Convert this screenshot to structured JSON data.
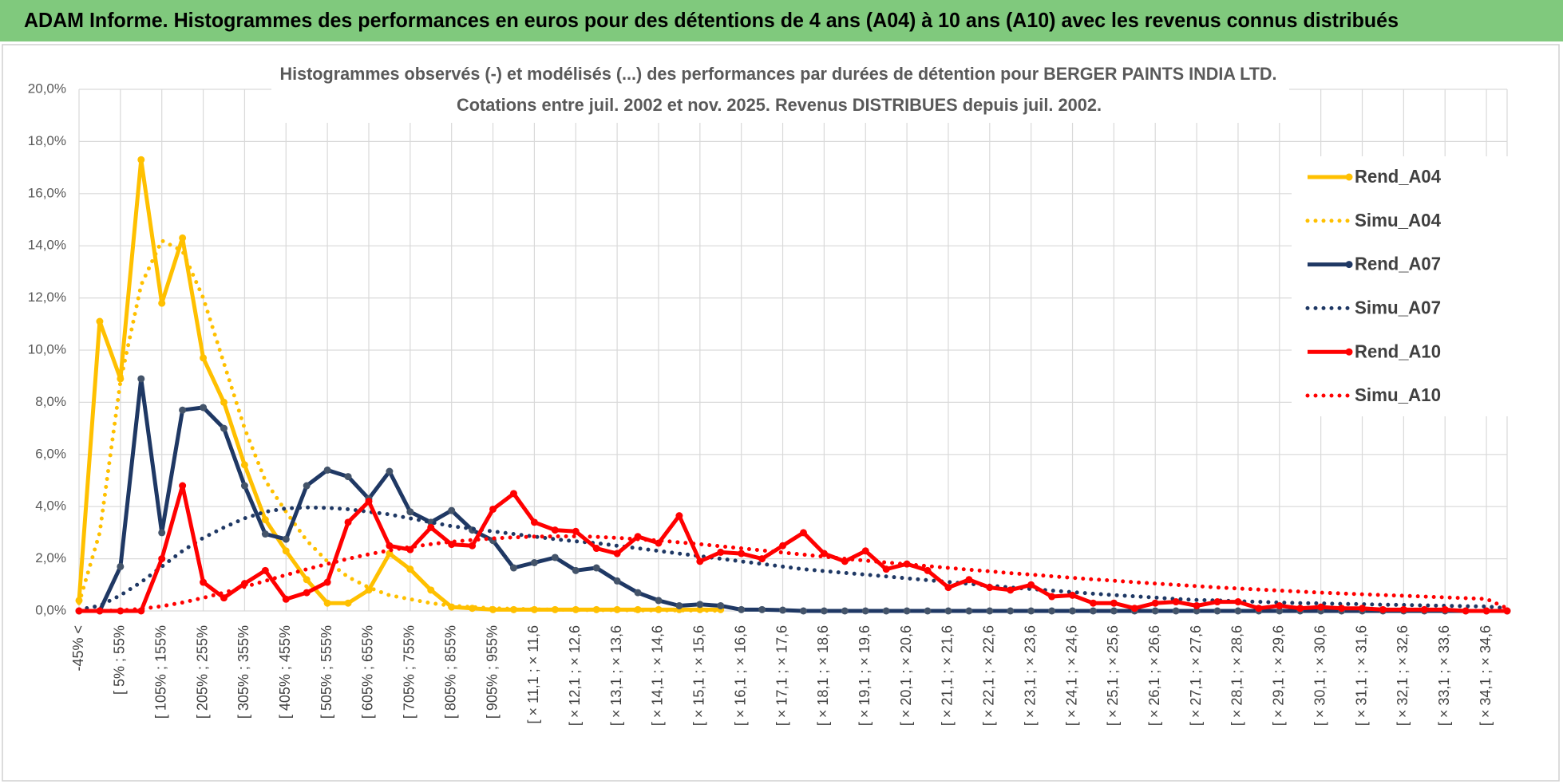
{
  "header": {
    "title": "ADAM Informe. Histogrammes des performances en euros pour des détentions de 4 ans (A04) à 10 ans (A10) avec les revenus connus distribués"
  },
  "chart_data": {
    "type": "line",
    "title": "Histogrammes observés (-) et modélisés (...) des performances par durées de détention pour BERGER PAINTS INDIA LTD.",
    "subtitle": "Cotations entre juil. 2002 et nov. 2025. Revenus DISTRIBUES depuis juil. 2002.",
    "categories": [
      "-45% <",
      null,
      "[ 5% ; 55%",
      null,
      "[ 105% ; 155%",
      null,
      "[ 205% ; 255%",
      null,
      "[ 305% ; 355%",
      null,
      "[ 405% ; 455%",
      null,
      "[ 505% ; 555%",
      null,
      "[ 605% ; 655%",
      null,
      "[ 705% ; 755%",
      null,
      "[ 805% ; 855%",
      null,
      "[ 905% ; 955%",
      null,
      "[ × 11,1 ; × 11,6",
      null,
      "[ × 12,1 ; × 12,6",
      null,
      "[ × 13,1 ; × 13,6",
      null,
      "[ × 14,1 ; × 14,6",
      null,
      "[ × 15,1 ; × 15,6",
      null,
      "[ × 16,1 ; × 16,6",
      null,
      "[ × 17,1 ; × 17,6",
      null,
      "[ × 18,1 ; × 18,6",
      null,
      "[ × 19,1 ; × 19,6",
      null,
      "[ × 20,1 ; × 20,6",
      null,
      "[ × 21,1 ; × 21,6",
      null,
      "[ × 22,1 ; × 22,6",
      null,
      "[ × 23,1 ; × 23,6",
      null,
      "[ × 24,1 ; × 24,6",
      null,
      "[ × 25,1 ; × 25,6",
      null,
      "[ × 26,1 ; × 26,6",
      null,
      "[ × 27,1 ; × 27,6",
      null,
      "[ × 28,1 ; × 28,6",
      null,
      "[ × 29,1 ; × 29,6",
      null,
      "[ × 30,1 ; × 30,6",
      null,
      "[ × 31,1 ; × 31,6",
      null,
      "[ × 32,1 ; × 32,6",
      null,
      "[ × 33,1 ; × 33,6",
      null,
      "[ × 34,1 ; × 34,6",
      null
    ],
    "series": [
      {
        "name": "Rend_A04",
        "color": "#ffc000",
        "dash": "solid",
        "values": [
          0.4,
          11.1,
          8.9,
          17.3,
          11.8,
          14.3,
          9.7,
          8.0,
          5.6,
          3.5,
          2.3,
          1.2,
          0.3,
          0.3,
          0.8,
          2.2,
          1.6,
          0.8,
          0.15,
          0.1,
          0.05,
          0.05,
          0.05,
          0.05,
          0.05,
          0.05,
          0.05,
          0.05,
          0.05,
          0.05,
          0.05,
          0.05,
          null,
          null,
          null,
          null,
          null,
          null,
          null,
          null,
          null,
          null,
          null,
          null,
          null,
          null,
          null,
          null,
          null,
          null,
          null,
          null,
          null,
          null,
          null,
          null,
          null,
          null,
          null,
          null,
          null,
          null,
          null,
          null,
          null,
          null,
          null,
          null,
          null,
          null
        ]
      },
      {
        "name": "Simu_A04",
        "color": "#ffc000",
        "dash": "dotted",
        "values": [
          0.3,
          3.0,
          8.8,
          12.5,
          14.2,
          13.8,
          12.0,
          9.5,
          7.0,
          5.0,
          3.8,
          2.7,
          1.9,
          1.3,
          0.9,
          0.6,
          0.45,
          0.3,
          0.2,
          0.15,
          0.1,
          0.08,
          0.06,
          0.05,
          0.04,
          0.03,
          0.03,
          0.02,
          0.02,
          0.02,
          0.01,
          0.01,
          null,
          null,
          null,
          null,
          null,
          null,
          null,
          null,
          null,
          null,
          null,
          null,
          null,
          null,
          null,
          null,
          null,
          null,
          null,
          null,
          null,
          null,
          null,
          null,
          null,
          null,
          null,
          null,
          null,
          null,
          null,
          null,
          null,
          null,
          null,
          null,
          null,
          null
        ]
      },
      {
        "name": "Rend_A07",
        "color": "#1f3864",
        "dash": "solid",
        "values": [
          0,
          0,
          1.7,
          8.9,
          3.0,
          7.7,
          7.8,
          7.0,
          4.8,
          2.95,
          2.75,
          4.8,
          5.4,
          5.15,
          4.3,
          5.35,
          3.8,
          3.4,
          3.85,
          3.1,
          2.7,
          1.65,
          1.85,
          2.05,
          1.55,
          1.65,
          1.15,
          0.7,
          0.4,
          0.2,
          0.25,
          0.2,
          0.05,
          0.05,
          0.03,
          0,
          0,
          0,
          0,
          0,
          0,
          0,
          0,
          0,
          0,
          0,
          0,
          0,
          0,
          0,
          0,
          0,
          0,
          0,
          0,
          0,
          0,
          0,
          0,
          0,
          0,
          0,
          0,
          0,
          0,
          0,
          0,
          0,
          0,
          0
        ]
      },
      {
        "name": "Simu_A07",
        "color": "#1f3864",
        "dash": "dotted",
        "values": [
          0.05,
          0.2,
          0.6,
          1.1,
          1.7,
          2.3,
          2.8,
          3.2,
          3.55,
          3.8,
          3.93,
          3.97,
          3.95,
          3.9,
          3.8,
          3.7,
          3.55,
          3.4,
          3.25,
          3.15,
          3.05,
          2.95,
          2.85,
          2.75,
          2.67,
          2.6,
          2.5,
          2.4,
          2.3,
          2.2,
          2.1,
          2.0,
          1.9,
          1.8,
          1.7,
          1.6,
          1.53,
          1.46,
          1.39,
          1.32,
          1.25,
          1.18,
          1.11,
          1.04,
          0.97,
          0.9,
          0.84,
          0.78,
          0.72,
          0.66,
          0.61,
          0.56,
          0.51,
          0.46,
          0.42,
          0.4,
          0.37,
          0.35,
          0.32,
          0.3,
          0.29,
          0.27,
          0.26,
          0.24,
          0.23,
          0.21,
          0.2,
          0.18,
          0.17,
          0.1
        ]
      },
      {
        "name": "Rend_A10",
        "color": "#ff0000",
        "dash": "solid",
        "values": [
          0,
          0,
          0,
          0,
          2.0,
          4.8,
          1.1,
          0.5,
          1.05,
          1.55,
          0.45,
          0.7,
          1.1,
          3.4,
          4.2,
          2.5,
          2.35,
          3.2,
          2.55,
          2.5,
          3.9,
          4.5,
          3.4,
          3.1,
          3.05,
          2.4,
          2.2,
          2.85,
          2.6,
          3.65,
          1.9,
          2.25,
          2.2,
          2.0,
          2.5,
          3.0,
          2.2,
          1.9,
          2.3,
          1.6,
          1.8,
          1.55,
          0.9,
          1.2,
          0.9,
          0.8,
          1.0,
          0.55,
          0.6,
          0.3,
          0.3,
          0.1,
          0.3,
          0.35,
          0.2,
          0.35,
          0.35,
          0.1,
          0.2,
          0.1,
          0.15,
          0.1,
          0.1,
          0.05,
          0.05,
          0.05,
          0.05,
          0,
          0,
          0
        ]
      },
      {
        "name": "Simu_A10",
        "color": "#ff0000",
        "dash": "dotted",
        "values": [
          0,
          0,
          0.02,
          0.08,
          0.18,
          0.32,
          0.5,
          0.7,
          0.92,
          1.15,
          1.38,
          1.6,
          1.8,
          2.0,
          2.17,
          2.32,
          2.45,
          2.56,
          2.65,
          2.72,
          2.78,
          2.82,
          2.85,
          2.86,
          2.86,
          2.84,
          2.8,
          2.75,
          2.7,
          2.63,
          2.56,
          2.48,
          2.4,
          2.32,
          2.24,
          2.16,
          2.08,
          2.0,
          1.93,
          1.86,
          1.79,
          1.72,
          1.65,
          1.58,
          1.52,
          1.45,
          1.39,
          1.33,
          1.27,
          1.21,
          1.16,
          1.1,
          1.05,
          1.0,
          0.95,
          0.9,
          0.86,
          0.82,
          0.78,
          0.74,
          0.7,
          0.67,
          0.64,
          0.61,
          0.58,
          0.55,
          0.52,
          0.49,
          0.46,
          0.1
        ]
      }
    ],
    "ylim": [
      0,
      20
    ],
    "yticks": [
      {
        "value": 0,
        "label": "0,0%"
      },
      {
        "value": 2,
        "label": "2,0%"
      },
      {
        "value": 4,
        "label": "4,0%"
      },
      {
        "value": 6,
        "label": "6,0%"
      },
      {
        "value": 8,
        "label": "8,0%"
      },
      {
        "value": 10,
        "label": "10,0%"
      },
      {
        "value": 12,
        "label": "12,0%"
      },
      {
        "value": 14,
        "label": "14,0%"
      },
      {
        "value": 16,
        "label": "16,0%"
      },
      {
        "value": 18,
        "label": "18,0%"
      },
      {
        "value": 20,
        "label": "20,0%"
      }
    ],
    "grid": true,
    "legend": "right"
  }
}
